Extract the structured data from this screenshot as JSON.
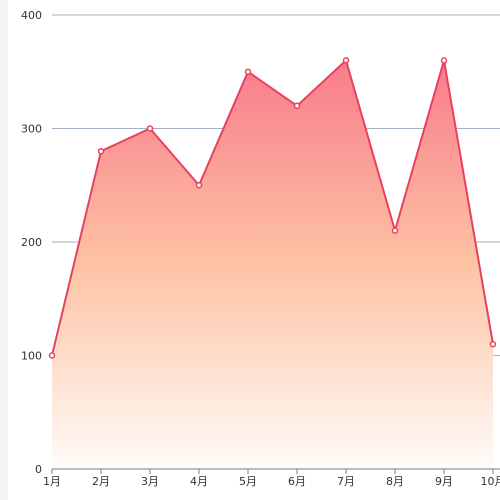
{
  "chart_data": {
    "type": "area",
    "categories": [
      "1月",
      "2月",
      "3月",
      "4月",
      "5月",
      "6月",
      "7月",
      "8月",
      "9月",
      "10月"
    ],
    "series": [
      {
        "values": [
          100,
          280,
          300,
          250,
          350,
          320,
          360,
          210,
          360,
          110
        ]
      }
    ],
    "ylim": [
      0,
      400
    ],
    "y_ticks": [
      0,
      100,
      200,
      300,
      400
    ],
    "grid": true,
    "colors": {
      "line": "#e8415f",
      "fill_top": "#f97b8b",
      "fill_mid": "#fdc3a4",
      "fill_bottom": "#fffbf8",
      "grid": "#a5b1c4",
      "axis": "#6e7d96",
      "marker_fill": "#ffffff"
    }
  }
}
